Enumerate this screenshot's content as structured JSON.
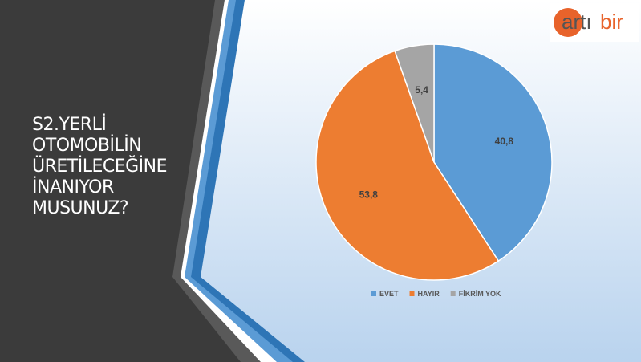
{
  "header": {
    "logo_left": "artı",
    "logo_right": "bir"
  },
  "chart_data": {
    "type": "pie",
    "title": "S2.YERLİ OTOMOBİLİN ÜRETİLECEĞİNE İNANIYOR MUSUNUZ?",
    "categories": [
      "EVET",
      "HAYIR",
      "FİKRİM YOK"
    ],
    "values": [
      40.8,
      53.8,
      5.4
    ],
    "value_labels": [
      "40,8",
      "53,8",
      "5,4"
    ],
    "colors": [
      "#5b9bd5",
      "#ed7d31",
      "#a5a5a5"
    ],
    "legend": "bottom"
  }
}
